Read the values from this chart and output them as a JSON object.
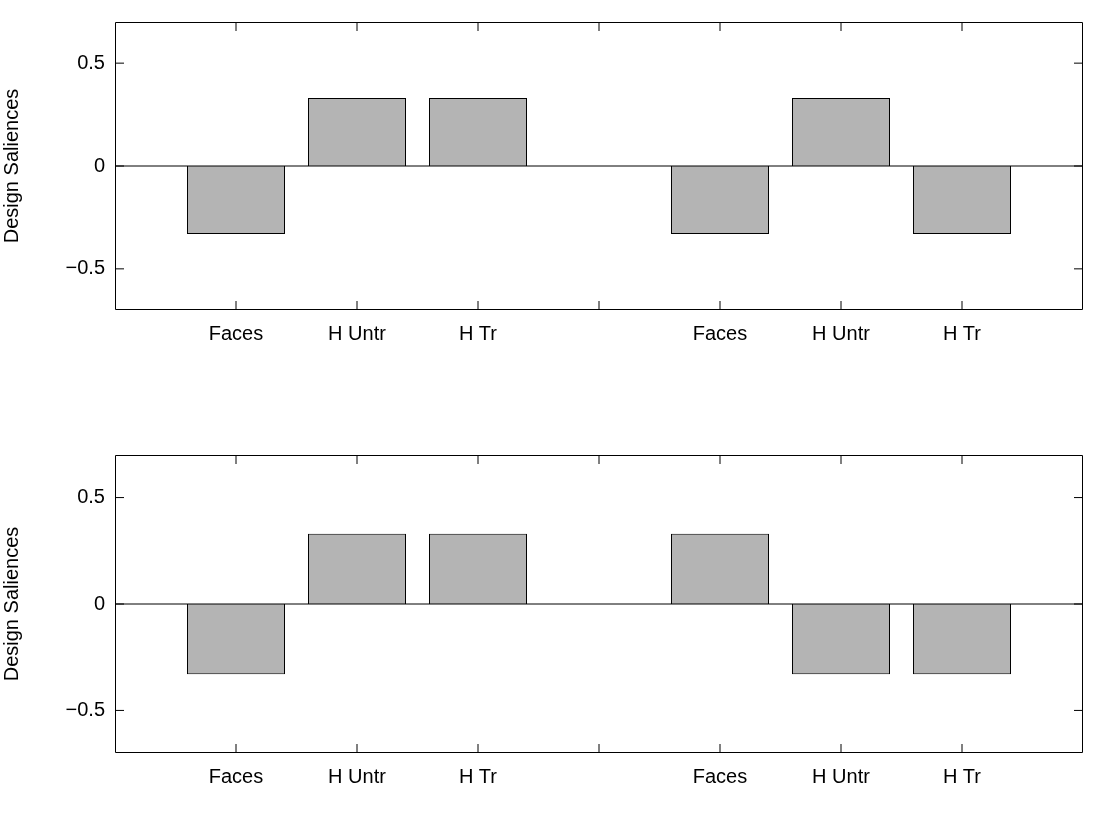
{
  "chart_data": [
    {
      "type": "bar",
      "ylabel": "Design Saliences",
      "categories": [
        "Faces",
        "H Untr",
        "H Tr",
        null,
        "Faces",
        "H Untr",
        "H Tr"
      ],
      "values": [
        -0.33,
        0.33,
        0.33,
        null,
        -0.33,
        0.33,
        -0.33
      ],
      "color": "#b4b4b4",
      "ylim": [
        -0.7,
        0.7
      ],
      "yticks": [
        {
          "value": -0.5,
          "label": "−0.5"
        },
        {
          "value": 0,
          "label": "0"
        },
        {
          "value": 0.5,
          "label": "0.5"
        }
      ],
      "ref_lines": [
        {
          "axis": "y",
          "value": 0,
          "color": "#000000"
        }
      ],
      "grid": false,
      "legend": false
    },
    {
      "type": "bar",
      "ylabel": "Design Saliences",
      "categories": [
        "Faces",
        "H Untr",
        "H Tr",
        null,
        "Faces",
        "H Untr",
        "H Tr"
      ],
      "values": [
        -0.33,
        0.33,
        0.33,
        null,
        0.33,
        -0.33,
        -0.33
      ],
      "color": "#b4b4b4",
      "ylim": [
        -0.7,
        0.7
      ],
      "yticks": [
        {
          "value": -0.5,
          "label": "−0.5"
        },
        {
          "value": 0,
          "label": "0"
        },
        {
          "value": 0.5,
          "label": "0.5"
        }
      ],
      "ref_lines": [
        {
          "axis": "y",
          "value": 0,
          "color": "#000000"
        }
      ],
      "grid": false,
      "legend": false
    }
  ]
}
